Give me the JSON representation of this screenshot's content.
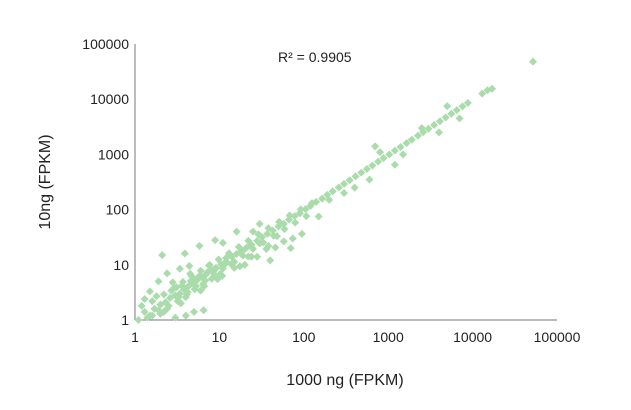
{
  "chart_data": {
    "type": "scatter",
    "xlabel": "1000 ng (FPKM)",
    "ylabel": "10ng (FPKM)",
    "annotation": "R² = 0.9905",
    "x_scale": "log",
    "y_scale": "log",
    "xlim": [
      1,
      100000
    ],
    "ylim": [
      1,
      100000
    ],
    "x_ticks": [
      "1",
      "10",
      "100",
      "1000",
      "10000",
      "100000"
    ],
    "y_ticks": [
      "1",
      "10",
      "100",
      "1000",
      "10000",
      "100000"
    ],
    "grid": false,
    "legend": "none",
    "marker": "diamond",
    "marker_color": "#a9dcaa",
    "series": [
      {
        "x": [
          1.1,
          1.3,
          1.5,
          1.7,
          2.0,
          2.3,
          2.6,
          3.0,
          3.4,
          3.8,
          4.3,
          4.9,
          5.5,
          6.2,
          7.0,
          8.0,
          9.0,
          10.5,
          12,
          14,
          16,
          18,
          21,
          24,
          28,
          32,
          37,
          43,
          50,
          58,
          67,
          78,
          90,
          105,
          120,
          140,
          165,
          190,
          220,
          260,
          300,
          350,
          410,
          480,
          560,
          650,
          760,
          880,
          1030,
          1200,
          1400,
          1650,
          1900,
          2250,
          2600,
          3000,
          3500,
          4100,
          4800,
          5600,
          6500,
          7600,
          8800,
          13000,
          15000,
          17000,
          52000,
          1.2,
          1.4,
          1.6,
          1.9,
          2.2,
          2.5,
          2.9,
          3.3,
          3.7,
          4.2,
          4.7,
          5.3,
          6.0,
          6.8,
          7.7,
          8.7,
          9.8,
          11,
          13,
          15,
          17,
          19,
          22,
          25,
          29,
          33,
          38,
          44,
          51,
          59,
          68,
          79,
          92,
          107,
          125,
          1.5,
          2.0,
          2.8,
          3.5,
          4.5,
          6.0,
          7.5,
          9.5,
          12,
          15,
          19,
          24,
          30,
          38,
          48,
          1.3,
          2.2,
          3.1,
          4.0,
          5.2,
          6.6,
          8.4,
          10.8,
          13.8,
          17.5,
          22,
          28,
          36,
          46,
          58,
          74,
          95,
          1.6,
          1.8,
          2.4,
          2.7,
          3.2,
          3.6,
          4.1,
          4.6,
          5.1,
          5.7,
          6.4,
          7.2,
          8.1,
          9.2,
          10.3,
          11.6,
          2.1,
          3.9,
          5.8,
          8.9,
          16,
          20,
          40,
          70,
          200,
          400,
          800,
          1500,
          2500,
          5000,
          300,
          600,
          1200,
          4000,
          7000,
          3.0,
          4.0,
          1.9,
          5.0,
          6.5,
          2.4,
          3.4,
          4.4,
          700,
          150,
          30,
          25,
          11
        ],
        "y": [
          1.0,
          1.4,
          1.2,
          1.6,
          1.9,
          2.1,
          2.5,
          2.8,
          3.0,
          3.6,
          4.1,
          4.5,
          5.4,
          6.0,
          6.8,
          8.1,
          8.7,
          10.1,
          11.5,
          13.9,
          15.8,
          17.2,
          20.6,
          23.1,
          27.2,
          31.8,
          36.3,
          41.7,
          49.5,
          55.2,
          65.8,
          76.3,
          86.1,
          102,
          117,
          138,
          158,
          185,
          214,
          251,
          292,
          341,
          399,
          467,
          545,
          630,
          739,
          856,
          998,
          1170,
          1360,
          1600,
          1840,
          2190,
          2530,
          2910,
          3400,
          3990,
          4670,
          5450,
          6330,
          7400,
          8570,
          12600,
          14500,
          15500,
          48000,
          1.8,
          1.1,
          2.2,
          1.5,
          2.9,
          1.8,
          3.8,
          2.6,
          4.9,
          3.2,
          6.2,
          4.1,
          7.8,
          5.2,
          9.9,
          6.7,
          12.5,
          8.6,
          16.2,
          11.3,
          21.0,
          14.7,
          27.3,
          19.4,
          35.5,
          25.5,
          46.2,
          33.6,
          60.0,
          44.2,
          78.0,
          58.0,
          101,
          76.0,
          131,
          3.3,
          1.3,
          4.8,
          2.0,
          6.9,
          3.4,
          9.7,
          5.5,
          13.3,
          8.8,
          18.0,
          14.0,
          24.5,
          22.0,
          33.0,
          2.4,
          1.4,
          3.9,
          2.6,
          5.3,
          4.1,
          7.5,
          6.3,
          10.3,
          9.4,
          14.1,
          14.0,
          19.3,
          20.6,
          26.5,
          30.0,
          36.3,
          1.2,
          2.7,
          1.6,
          3.4,
          2.2,
          4.2,
          2.9,
          5.1,
          3.6,
          6.1,
          4.5,
          7.3,
          5.6,
          8.7,
          6.9,
          10.3,
          15.0,
          16.0,
          22.0,
          28.0,
          40.0,
          10.0,
          12.0,
          20.0,
          150,
          250,
          1100,
          1000,
          3000,
          7500,
          200,
          350,
          650,
          2500,
          4500,
          1.1,
          1.2,
          5.0,
          1.4,
          1.5,
          7.0,
          8.5,
          9.5,
          1400,
          75,
          55,
          40,
          25
        ]
      }
    ]
  }
}
